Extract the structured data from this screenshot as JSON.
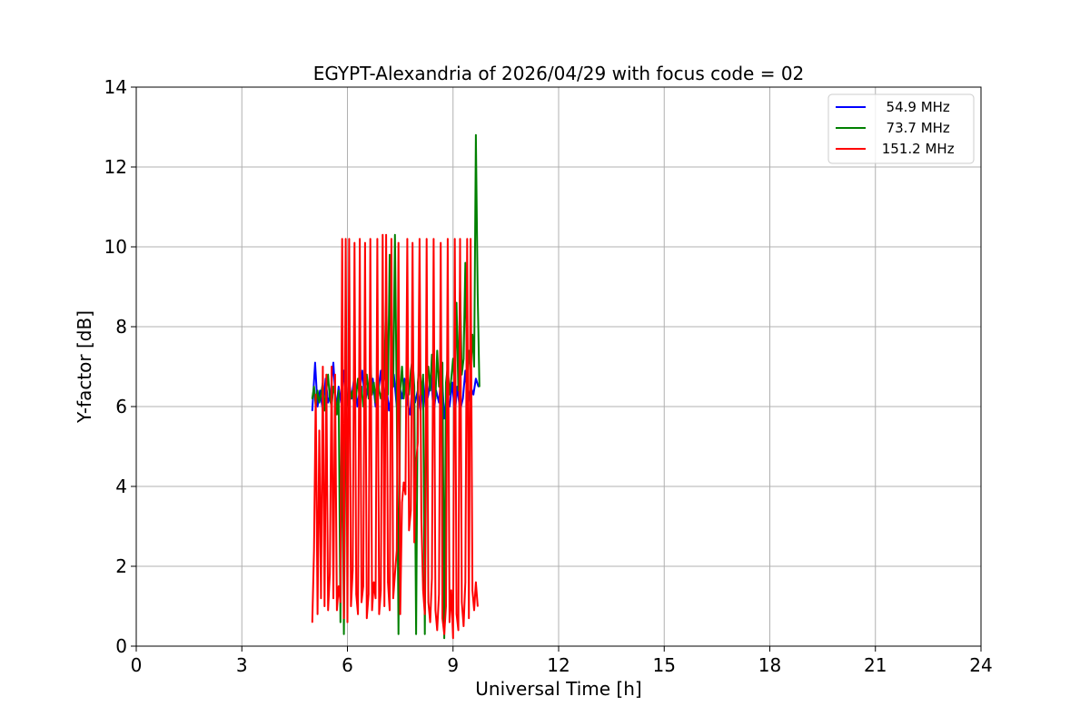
{
  "chart_data": {
    "type": "line",
    "title": "EGYPT-Alexandria of 2026/04/29 with focus code = 02",
    "xlabel": "Universal Time [h]",
    "ylabel": "Y-factor [dB]",
    "xlim": [
      0,
      24
    ],
    "ylim": [
      0,
      14
    ],
    "xticks": [
      0,
      3,
      6,
      9,
      12,
      15,
      18,
      21,
      24
    ],
    "yticks": [
      0,
      2,
      4,
      6,
      8,
      10,
      12,
      14
    ],
    "grid": true,
    "legend_position": "top-right",
    "series": [
      {
        "name": "  54.9 MHz",
        "color": "#0000ff",
        "x": [
          5.0,
          5.08,
          5.15,
          5.22,
          5.3,
          5.38,
          5.45,
          5.52,
          5.6,
          5.68,
          5.75,
          5.82,
          5.9,
          5.98,
          6.05,
          6.12,
          6.2,
          6.28,
          6.35,
          6.42,
          6.5,
          6.58,
          6.65,
          6.72,
          6.8,
          6.88,
          6.95,
          7.02,
          7.1,
          7.18,
          7.25,
          7.32,
          7.4,
          7.48,
          7.55,
          7.62,
          7.7,
          7.78,
          7.85,
          7.92,
          8.0,
          8.08,
          8.15,
          8.22,
          8.3,
          8.38,
          8.45,
          8.52,
          8.6,
          8.68,
          8.75,
          8.82,
          8.9,
          8.98,
          9.05,
          9.12,
          9.2,
          9.28,
          9.35,
          9.42,
          9.5,
          9.58,
          9.65,
          9.72
        ],
        "values": [
          5.9,
          7.1,
          6.0,
          6.4,
          5.9,
          6.7,
          6.1,
          6.3,
          7.1,
          5.9,
          6.5,
          6.1,
          6.9,
          6.0,
          6.6,
          6.2,
          6.8,
          6.0,
          6.4,
          6.9,
          6.1,
          6.5,
          6.2,
          6.7,
          6.0,
          6.4,
          6.9,
          6.1,
          6.6,
          5.9,
          6.3,
          6.8,
          6.0,
          6.5,
          6.2,
          6.7,
          6.1,
          5.8,
          6.6,
          6.1,
          6.4,
          5.9,
          6.7,
          6.0,
          6.3,
          6.8,
          5.8,
          6.4,
          6.1,
          6.9,
          5.7,
          6.3,
          6.0,
          6.6,
          5.8,
          6.5,
          5.9,
          6.2,
          6.9,
          6.1,
          6.5,
          6.3,
          6.7,
          6.5
        ]
      },
      {
        "name": "  73.7 MHz",
        "color": "#008000",
        "x": [
          5.0,
          5.05,
          5.1,
          5.15,
          5.2,
          5.25,
          5.3,
          5.35,
          5.4,
          5.45,
          5.5,
          5.55,
          5.6,
          5.65,
          5.7,
          5.75,
          5.8,
          5.85,
          5.9,
          5.95,
          6.0,
          6.05,
          6.1,
          6.15,
          6.2,
          6.25,
          6.3,
          6.35,
          6.4,
          6.45,
          6.5,
          6.55,
          6.6,
          6.65,
          6.7,
          6.75,
          6.8,
          6.85,
          6.9,
          6.95,
          7.0,
          7.05,
          7.1,
          7.15,
          7.2,
          7.25,
          7.3,
          7.35,
          7.4,
          7.45,
          7.5,
          7.55,
          7.6,
          7.65,
          7.7,
          7.75,
          7.8,
          7.85,
          7.9,
          7.95,
          8.0,
          8.05,
          8.1,
          8.15,
          8.2,
          8.25,
          8.3,
          8.35,
          8.4,
          8.45,
          8.5,
          8.55,
          8.6,
          8.65,
          8.7,
          8.75,
          8.8,
          8.85,
          8.9,
          8.95,
          9.0,
          9.05,
          9.1,
          9.15,
          9.2,
          9.25,
          9.3,
          9.35,
          9.4,
          9.45,
          9.5,
          9.55,
          9.6,
          9.65,
          9.7,
          9.75
        ],
        "values": [
          6.2,
          6.5,
          6.0,
          6.4,
          6.1,
          6.3,
          6.6,
          5.9,
          6.4,
          6.8,
          6.2,
          6.0,
          6.5,
          6.3,
          5.8,
          6.4,
          0.6,
          6.2,
          0.3,
          5.9,
          6.1,
          6.6,
          6.2,
          6.4,
          5.9,
          6.3,
          6.7,
          6.1,
          6.5,
          6.0,
          6.4,
          6.8,
          6.2,
          7.2,
          6.3,
          6.6,
          6.1,
          6.9,
          6.4,
          6.2,
          6.5,
          6.8,
          8.8,
          6.3,
          9.8,
          6.6,
          6.5,
          10.3,
          6.1,
          0.3,
          6.4,
          7.0,
          6.2,
          6.6,
          6.8,
          6.3,
          6.9,
          7.2,
          6.5,
          0.3,
          6.6,
          7.1,
          6.3,
          6.8,
          0.3,
          6.7,
          7.0,
          6.4,
          7.3,
          6.6,
          6.2,
          7.4,
          6.5,
          6.9,
          7.1,
          0.2,
          6.6,
          7.0,
          6.3,
          6.7,
          7.2,
          6.5,
          8.6,
          6.4,
          9.0,
          6.8,
          7.2,
          9.6,
          6.6,
          7.4,
          6.9,
          7.8,
          7.0,
          12.8,
          8.8,
          6.5
        ]
      },
      {
        "name": " 151.2 MHz",
        "color": "#ff0000",
        "x": [
          5.0,
          5.05,
          5.1,
          5.15,
          5.2,
          5.25,
          5.3,
          5.35,
          5.4,
          5.45,
          5.5,
          5.55,
          5.6,
          5.65,
          5.7,
          5.75,
          5.8,
          5.85,
          5.9,
          5.95,
          6.0,
          6.05,
          6.1,
          6.15,
          6.2,
          6.25,
          6.3,
          6.35,
          6.4,
          6.45,
          6.5,
          6.55,
          6.6,
          6.65,
          6.7,
          6.75,
          6.8,
          6.85,
          6.9,
          6.95,
          7.0,
          7.05,
          7.1,
          7.15,
          7.2,
          7.25,
          7.3,
          7.35,
          7.4,
          7.45,
          7.5,
          7.55,
          7.6,
          7.65,
          7.7,
          7.75,
          7.8,
          7.85,
          7.9,
          7.95,
          8.0,
          8.05,
          8.1,
          8.15,
          8.2,
          8.25,
          8.3,
          8.35,
          8.4,
          8.45,
          8.5,
          8.55,
          8.6,
          8.65,
          8.7,
          8.75,
          8.8,
          8.85,
          8.9,
          8.95,
          9.0,
          9.05,
          9.1,
          9.15,
          9.2,
          9.25,
          9.3,
          9.35,
          9.4,
          9.45,
          9.5,
          9.55,
          9.6,
          9.65,
          9.7
        ],
        "values": [
          0.6,
          2.4,
          6.3,
          0.8,
          5.4,
          1.2,
          7.0,
          1.0,
          6.8,
          0.9,
          1.8,
          7.0,
          1.2,
          6.8,
          0.9,
          1.5,
          1.1,
          10.2,
          0.7,
          10.2,
          0.6,
          10.2,
          1.0,
          1.9,
          10.1,
          1.3,
          0.8,
          10.2,
          1.1,
          1.5,
          10.1,
          0.7,
          1.3,
          10.2,
          0.9,
          1.6,
          1.2,
          10.2,
          0.8,
          1.4,
          10.3,
          1.0,
          10.3,
          1.6,
          0.9,
          10.2,
          1.2,
          1.8,
          2.4,
          10.1,
          0.8,
          3.6,
          4.1,
          3.8,
          10.2,
          2.9,
          3.4,
          10.1,
          2.6,
          4.6,
          5.1,
          10.2,
          3.2,
          1.4,
          0.8,
          10.2,
          1.1,
          0.6,
          1.7,
          10.2,
          0.9,
          0.4,
          1.3,
          10.1,
          0.7,
          0.3,
          1.0,
          10.2,
          0.6,
          1.4,
          0.2,
          10.2,
          0.8,
          0.4,
          10.2,
          1.1,
          0.5,
          1.6,
          10.2,
          0.7,
          10.2,
          1.4,
          0.9,
          1.6,
          1.0
        ]
      }
    ]
  }
}
